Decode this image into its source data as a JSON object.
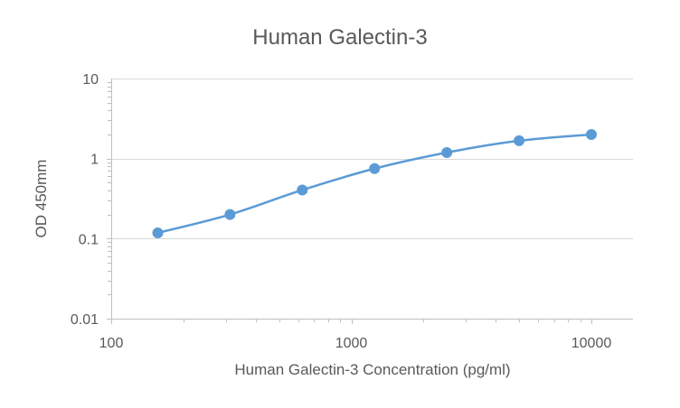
{
  "chart_data": {
    "type": "scatter",
    "title": "Human Galectin-3",
    "xlabel": "Human Galectin-3 Concentration (pg/ml)",
    "ylabel": "OD 450mm",
    "x_scale": "log",
    "y_scale": "log",
    "xlim": [
      100,
      10000
    ],
    "ylim": [
      0.01,
      10
    ],
    "x_ticks": [
      "100",
      "1000",
      "10000"
    ],
    "y_ticks": [
      "0.01",
      "0.1",
      "1",
      "10"
    ],
    "grid": "horizontal",
    "legend": "none",
    "line": "smooth",
    "series_color": "#5b9bd5",
    "axis_color": "#bfbfbf",
    "grid_color": "#d9d9d9",
    "text_color": "#595959",
    "series": [
      {
        "x": [
          156.25,
          312.5,
          625,
          1250,
          2500,
          5000,
          10000
        ],
        "y": [
          0.118,
          0.2,
          0.405,
          0.75,
          1.19,
          1.67,
          2.0
        ]
      }
    ]
  }
}
